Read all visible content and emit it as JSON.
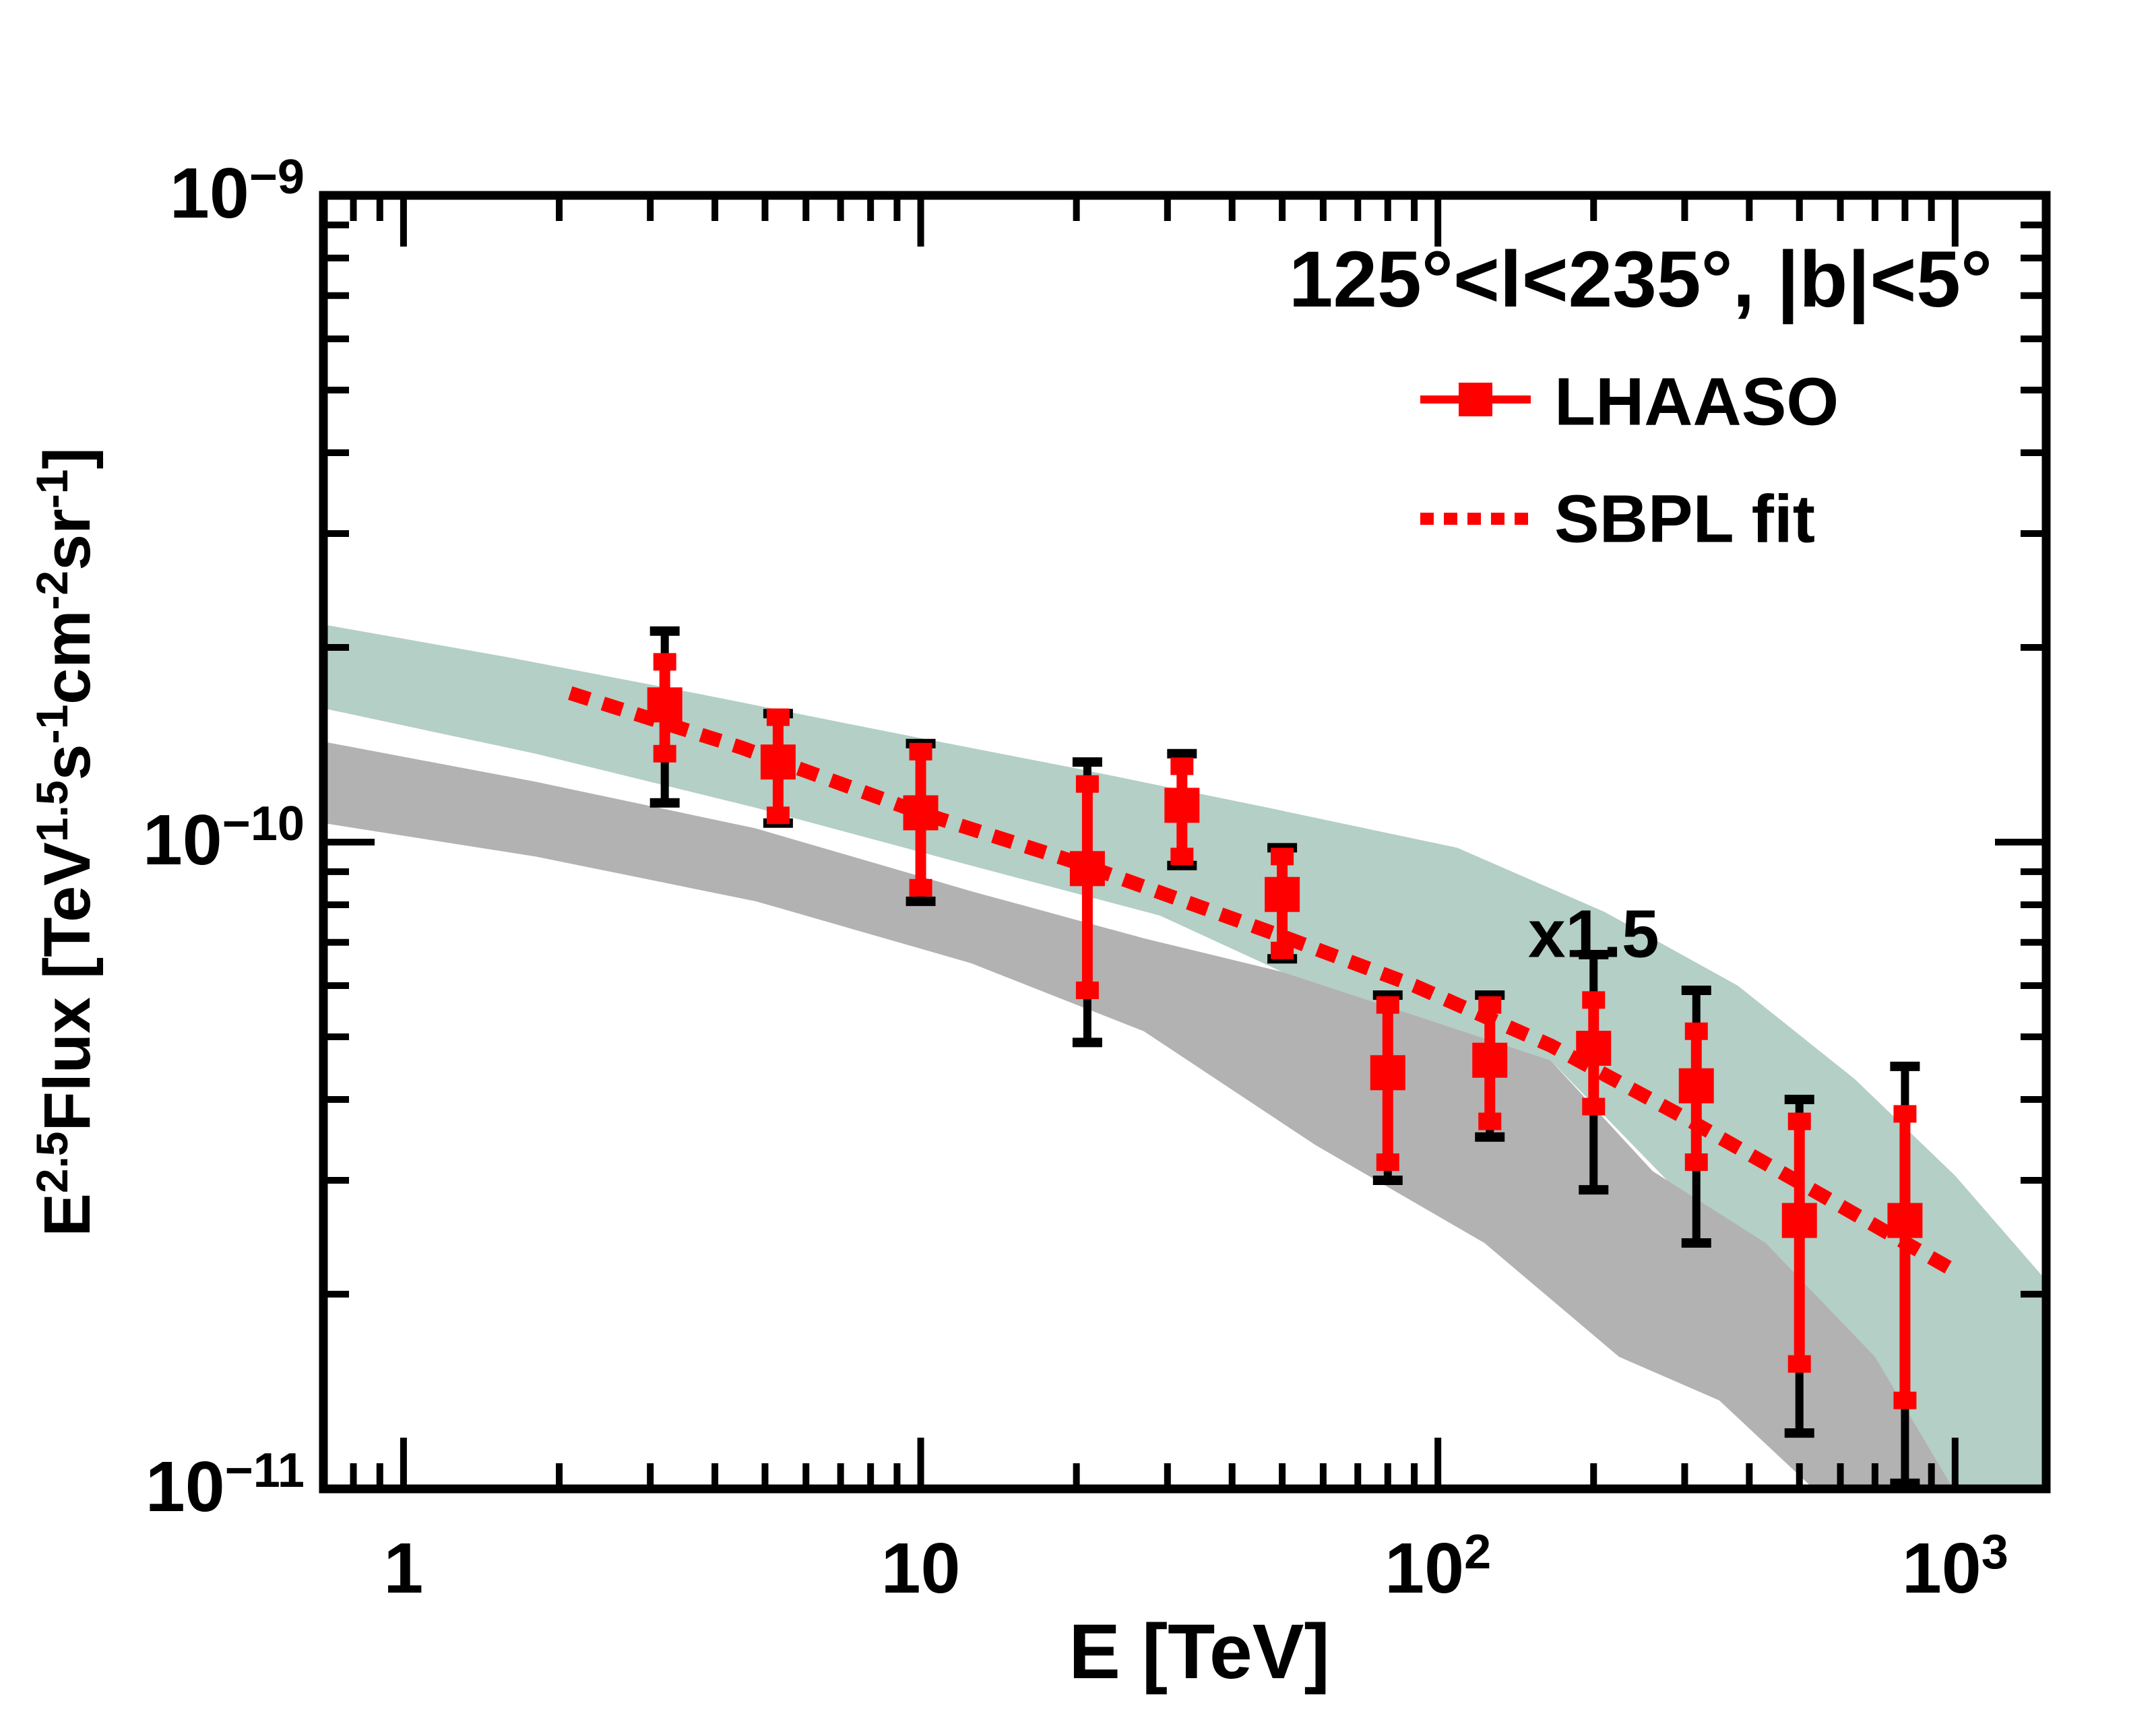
{
  "annotations": {
    "region": "125°<l<235°, |b|<5°",
    "scale_factor": "x1.5",
    "scale_factor_pos": {
      "e": 200,
      "flux": 7.2e-11
    }
  },
  "legend": {
    "items": [
      {
        "label": "LHAASO",
        "marker": "square-with-line"
      },
      {
        "label": "SBPL fit",
        "marker": "dotted-line"
      }
    ]
  },
  "colors": {
    "red": "#ff0000",
    "green_band": "#b4cfc5",
    "gray_band": "#b2b2b2",
    "black": "#000000",
    "background": "#ffffff"
  },
  "chart_data": {
    "type": "scatter",
    "title": "125°<l<235°, |b|<5°",
    "grid": false,
    "legend_position": "top-right",
    "x_axis": {
      "label": "E [TeV]",
      "scale": "log",
      "min": 0.7,
      "max": 1500,
      "major_tick_values": [
        1,
        10,
        100,
        1000
      ],
      "tick_labels": [
        {
          "base": "1",
          "exp": ""
        },
        {
          "base": "10",
          "exp": ""
        },
        {
          "base": "10",
          "exp": "2"
        },
        {
          "base": "10",
          "exp": "3"
        }
      ]
    },
    "y_axis": {
      "label_parts": [
        {
          "text": "E"
        },
        {
          "text": "2.5",
          "sup": true
        },
        {
          "text": "Flux [TeV"
        },
        {
          "text": "1.5",
          "sup": true
        },
        {
          "text": "s"
        },
        {
          "text": "-1",
          "sup": true
        },
        {
          "text": "cm"
        },
        {
          "text": "-2",
          "sup": true
        },
        {
          "text": "sr"
        },
        {
          "text": "-1",
          "sup": true
        },
        {
          "text": "]"
        }
      ],
      "scale": "log",
      "min": 1e-11,
      "max": 1e-09,
      "major_tick_values": [
        1e-09,
        1e-10,
        1e-11
      ],
      "tick_labels": [
        {
          "base": "10",
          "exp": "−9"
        },
        {
          "base": "10",
          "exp": "−10"
        },
        {
          "base": "10",
          "exp": "−11"
        }
      ]
    },
    "series": [
      {
        "name": "LHAASO",
        "type": "errorbar-points",
        "color": "#ff0000",
        "points": [
          {
            "e": 3.2,
            "flux": 1.63e-10,
            "stat_hi": 1.9e-10,
            "stat_lo": 1.37e-10,
            "tot_hi": 2.12e-10,
            "tot_lo": 1.15e-10
          },
          {
            "e": 5.3,
            "flux": 1.33e-10,
            "stat_hi": 1.56e-10,
            "stat_lo": 1.1e-10,
            "tot_hi": 1.58e-10,
            "tot_lo": 1.07e-10
          },
          {
            "e": 10,
            "flux": 1.11e-10,
            "stat_hi": 1.38e-10,
            "stat_lo": 8.5e-11,
            "tot_hi": 1.42e-10,
            "tot_lo": 8.1e-11
          },
          {
            "e": 21,
            "flux": 9.1e-11,
            "stat_hi": 1.23e-10,
            "stat_lo": 5.9e-11,
            "tot_hi": 1.33e-10,
            "tot_lo": 4.9e-11
          },
          {
            "e": 32,
            "flux": 1.14e-10,
            "stat_hi": 1.31e-10,
            "stat_lo": 9.5e-11,
            "tot_hi": 1.37e-10,
            "tot_lo": 9.2e-11
          },
          {
            "e": 50,
            "flux": 8.3e-11,
            "stat_hi": 9.5e-11,
            "stat_lo": 6.8e-11,
            "tot_hi": 9.8e-11,
            "tot_lo": 6.6e-11
          },
          {
            "e": 80,
            "flux": 4.4e-11,
            "stat_hi": 5.6e-11,
            "stat_lo": 3.2e-11,
            "tot_hi": 5.8e-11,
            "tot_lo": 3e-11
          },
          {
            "e": 126,
            "flux": 4.6e-11,
            "stat_hi": 5.6e-11,
            "stat_lo": 3.7e-11,
            "tot_hi": 5.8e-11,
            "tot_lo": 3.5e-11
          },
          {
            "e": 200,
            "flux": 4.8e-11,
            "stat_hi": 5.7e-11,
            "stat_lo": 3.9e-11,
            "tot_hi": 6.7e-11,
            "tot_lo": 2.9e-11
          },
          {
            "e": 316,
            "flux": 4.2e-11,
            "stat_hi": 5.1e-11,
            "stat_lo": 3.2e-11,
            "tot_hi": 5.9e-11,
            "tot_lo": 2.4e-11
          },
          {
            "e": 500,
            "flux": 2.6e-11,
            "stat_hi": 3.7e-11,
            "stat_lo": 1.56e-11,
            "tot_hi": 4e-11,
            "tot_lo": 1.22e-11
          },
          {
            "e": 800,
            "flux": 2.6e-11,
            "stat_hi": 3.8e-11,
            "stat_lo": 1.37e-11,
            "tot_hi": 4.5e-11,
            "tot_lo": 1.02e-11
          }
        ]
      },
      {
        "name": "SBPL fit",
        "type": "dotted-line",
        "color": "#ff0000",
        "points": [
          [
            2.1,
            1.7e-10
          ],
          [
            4.5,
            1.4e-10
          ],
          [
            10,
            1.11e-10
          ],
          [
            20,
            9.3e-11
          ],
          [
            50,
            7.15e-11
          ],
          [
            90,
            6e-11
          ],
          [
            165,
            4.85e-11
          ],
          [
            300,
            3.75e-11
          ],
          [
            550,
            2.85e-11
          ],
          [
            970,
            2.2e-11
          ]
        ]
      }
    ],
    "bands": [
      {
        "name": "model-band-green",
        "color": "#b4cfc5",
        "top": [
          [
            0.7,
            2.17e-10
          ],
          [
            1.6,
            1.93e-10
          ],
          [
            3.8,
            1.69e-10
          ],
          [
            8.7,
            1.48e-10
          ],
          [
            20,
            1.3e-10
          ],
          [
            47,
            1.13e-10
          ],
          [
            109,
            9.8e-11
          ],
          [
            210,
            7.8e-11
          ],
          [
            380,
            6e-11
          ],
          [
            640,
            4.3e-11
          ],
          [
            1000,
            3.05e-11
          ],
          [
            1500,
            2.1e-11
          ]
        ],
        "bottom": [
          [
            0.7,
            1.61e-10
          ],
          [
            1.8,
            1.37e-10
          ],
          [
            4.8,
            1.13e-10
          ],
          [
            12.5,
            9.2e-11
          ],
          [
            29,
            7.7e-11
          ],
          [
            50,
            6.3e-11
          ],
          [
            90,
            5.4e-11
          ],
          [
            165,
            4.6e-11
          ],
          [
            330,
            2.6e-11
          ],
          [
            520,
            1.55e-11
          ],
          [
            700,
            1.05e-11
          ],
          [
            860,
            8e-12
          ],
          [
            1500,
            8e-12
          ]
        ]
      },
      {
        "name": "model-band-gray",
        "color": "#b2b2b2",
        "top": [
          [
            0.7,
            1.43e-10
          ],
          [
            1.8,
            1.24e-10
          ],
          [
            4.8,
            1.05e-10
          ],
          [
            12.5,
            8.4e-11
          ],
          [
            27,
            7.1e-11
          ],
          [
            50,
            6.3e-11
          ],
          [
            90,
            5.4e-11
          ],
          [
            165,
            4.6e-11
          ],
          [
            260,
            3.1e-11
          ],
          [
            430,
            2.4e-11
          ],
          [
            700,
            1.6e-11
          ],
          [
            1030,
            9.5e-12
          ]
        ],
        "bottom": [
          [
            0.7,
            1.07e-10
          ],
          [
            1.8,
            9.5e-11
          ],
          [
            4.8,
            8.1e-11
          ],
          [
            12.5,
            6.5e-11
          ],
          [
            27,
            5.1e-11
          ],
          [
            58,
            3.4e-11
          ],
          [
            123,
            2.4e-11
          ],
          [
            224,
            1.6e-11
          ],
          [
            350,
            1.37e-11
          ],
          [
            540,
            9.9e-12
          ]
        ]
      }
    ]
  }
}
